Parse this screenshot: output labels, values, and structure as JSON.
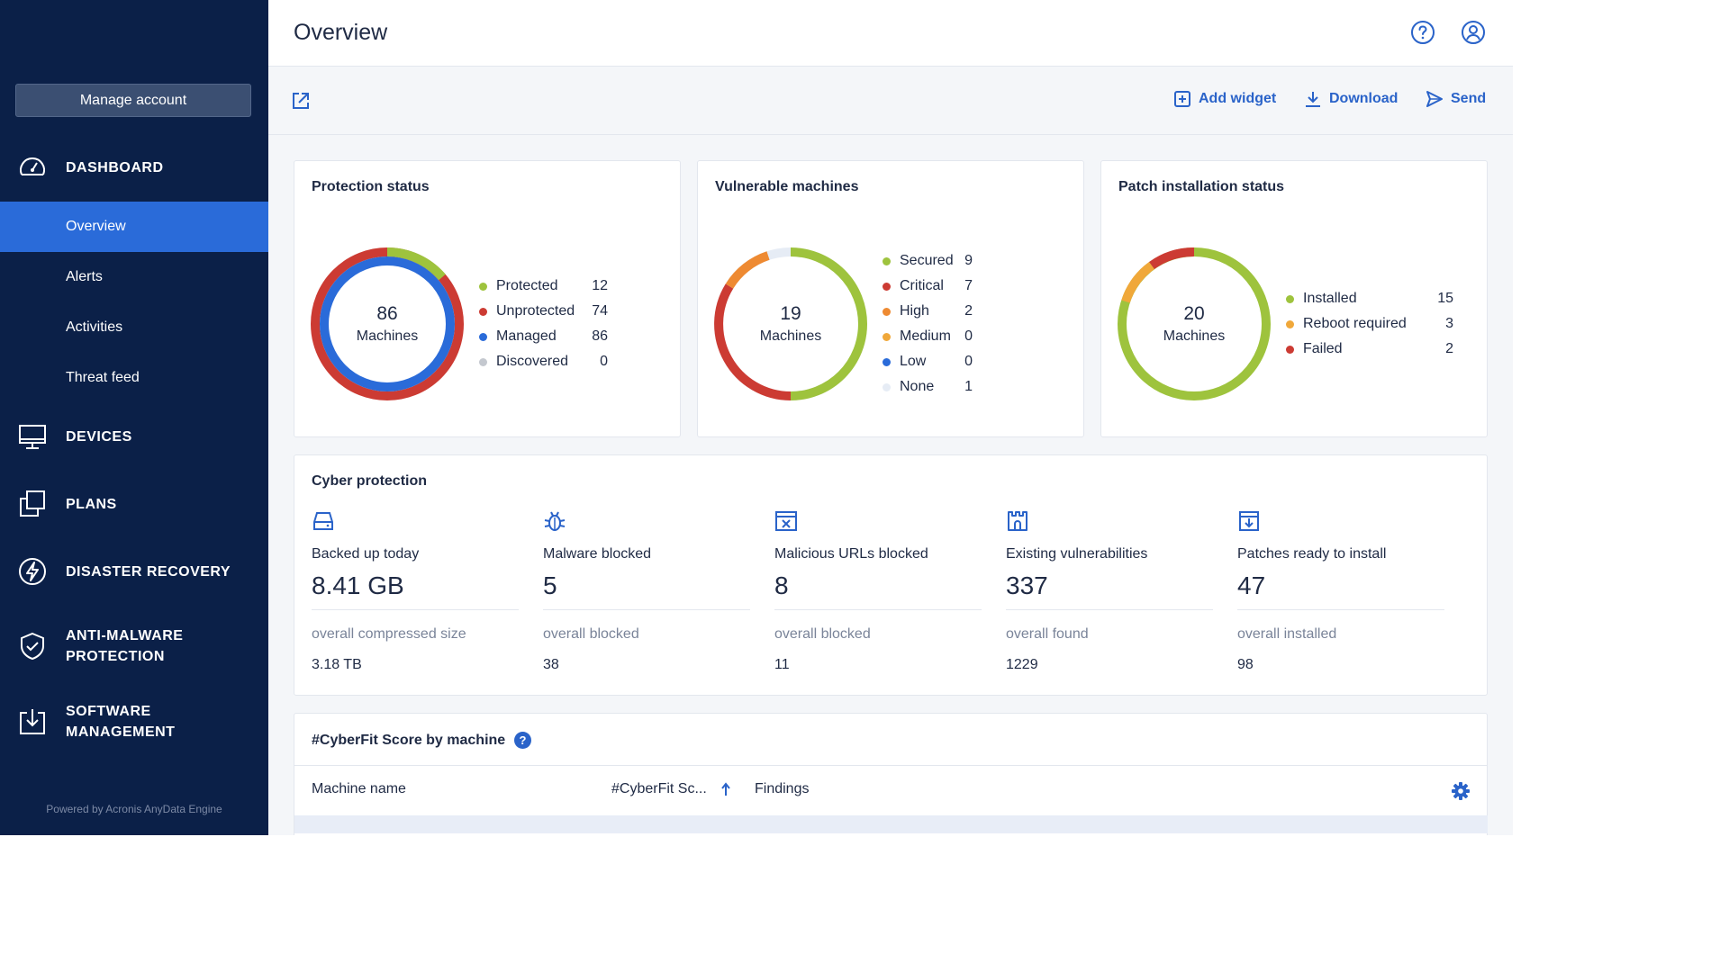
{
  "sidebar": {
    "manage_account": "Manage account",
    "sections": [
      {
        "label": "DASHBOARD",
        "icon": "dashboard-gauge-icon"
      },
      {
        "label": "DEVICES",
        "icon": "monitor-icon"
      },
      {
        "label": "PLANS",
        "icon": "plans-copy-icon"
      },
      {
        "label": "DISASTER RECOVERY",
        "icon": "lightning-icon"
      },
      {
        "label": "ANTI-MALWARE",
        "label2": "PROTECTION",
        "icon": "shield-check-icon"
      },
      {
        "label": "SOFTWARE",
        "label2": "MANAGEMENT",
        "icon": "download-box-icon"
      }
    ],
    "items": [
      {
        "label": "Overview",
        "active": true
      },
      {
        "label": "Alerts"
      },
      {
        "label": "Activities"
      },
      {
        "label": "Threat feed"
      }
    ],
    "powered_by": "Powered by Acronis AnyData Engine"
  },
  "header": {
    "title": "Overview",
    "icons": [
      "help-circle-icon",
      "user-circle-icon"
    ]
  },
  "toolbar": {
    "expand_icon": "expand-icon",
    "add_widget": "Add widget",
    "download": "Download",
    "send": "Send"
  },
  "colors": {
    "green": "#9ec33d",
    "red": "#cc3b33",
    "blue": "#2a6bd9",
    "grey": "#c4c8cf",
    "orange": "#ee8a32",
    "amber": "#f0a83a",
    "light": "#e6ecf5",
    "accent": "#2a63c9"
  },
  "protection": {
    "title": "Protection status",
    "total": "86",
    "unit": "Machines",
    "legend": [
      {
        "label": "Protected",
        "value": "12",
        "color": "#9ec33d"
      },
      {
        "label": "Unprotected",
        "value": "74",
        "color": "#cc3b33"
      },
      {
        "label": "Managed",
        "value": "86",
        "color": "#2a6bd9"
      },
      {
        "label": "Discovered",
        "value": "0",
        "color": "#c4c8cf"
      }
    ]
  },
  "vulnerable": {
    "title": "Vulnerable machines",
    "total": "19",
    "unit": "Machines",
    "legend": [
      {
        "label": "Secured",
        "value": "9",
        "color": "#9ec33d"
      },
      {
        "label": "Critical",
        "value": "7",
        "color": "#cc3b33"
      },
      {
        "label": "High",
        "value": "2",
        "color": "#ee8a32"
      },
      {
        "label": "Medium",
        "value": "0",
        "color": "#f0a83a"
      },
      {
        "label": "Low",
        "value": "0",
        "color": "#2a6bd9"
      },
      {
        "label": "None",
        "value": "1",
        "color": "#e6ecf5"
      }
    ]
  },
  "patch": {
    "title": "Patch installation status",
    "total": "20",
    "unit": "Machines",
    "legend": [
      {
        "label": "Installed",
        "value": "15",
        "color": "#9ec33d"
      },
      {
        "label": "Reboot required",
        "value": "3",
        "color": "#f0a83a"
      },
      {
        "label": "Failed",
        "value": "2",
        "color": "#cc3b33"
      }
    ]
  },
  "cyber": {
    "title": "Cyber protection",
    "metrics": [
      {
        "icon": "hard-drive-icon",
        "label": "Backed up today",
        "value": "8.41 GB",
        "sub": "overall compressed size",
        "subval": "3.18 TB"
      },
      {
        "icon": "bug-icon",
        "label": "Malware blocked",
        "value": "5",
        "sub": "overall blocked",
        "subval": "38"
      },
      {
        "icon": "blocked-url-icon",
        "label": "Malicious URLs blocked",
        "value": "8",
        "sub": "overall blocked",
        "subval": "11"
      },
      {
        "icon": "castle-icon",
        "label": "Existing vulnerabilities",
        "value": "337",
        "sub": "overall found",
        "subval": "1229"
      },
      {
        "icon": "patch-download-icon",
        "label": "Patches ready to install",
        "value": "47",
        "sub": "overall installed",
        "subval": "98"
      }
    ]
  },
  "cyberfit": {
    "title": "#CyberFit Score by machine",
    "columns": [
      "Machine name",
      "#CyberFit Sc...",
      "Findings"
    ]
  }
}
